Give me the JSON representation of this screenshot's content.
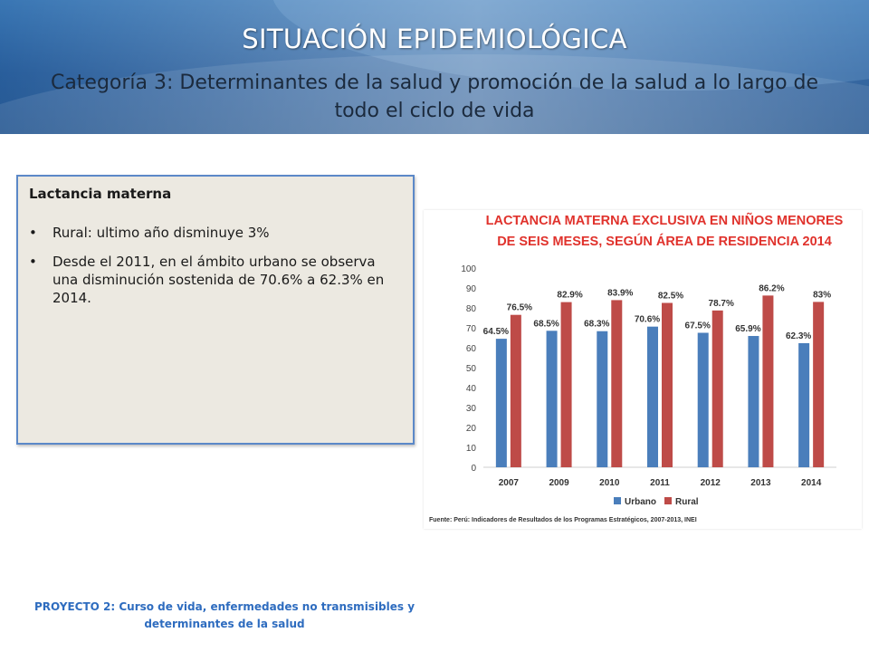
{
  "header": {
    "title": "SITUACIÓN EPIDEMIOLÓGICA",
    "subtitle": "Categoría 3: Determinantes de la salud y promoción de la salud a lo largo de todo el ciclo de vida"
  },
  "textbox": {
    "title": "Lactancia materna",
    "bullet_glyph": "•",
    "items": [
      "Rural: ultimo año disminuye 3%",
      "Desde el 2011, en el ámbito urbano se observa una disminución sostenida de 70.6% a 62.3% en 2014."
    ]
  },
  "chart_data": {
    "type": "bar",
    "title_lines": [
      "LACTANCIA MATERNA EXCLUSIVA EN NIÑOS MENORES",
      "DE SEIS MESES, SEGÚN ÁREA DE RESIDENCIA 2014"
    ],
    "categories": [
      "2007",
      "2009",
      "2010",
      "2011",
      "2012",
      "2013",
      "2014"
    ],
    "series": [
      {
        "name": "Urbano",
        "color": "#4a7ebb",
        "values": [
          64.5,
          68.5,
          68.3,
          70.6,
          67.5,
          65.9,
          62.3
        ],
        "labels": [
          "64.5%",
          "68.5%",
          "68.3%",
          "70.6%",
          "67.5%",
          "65.9%",
          "62.3%"
        ]
      },
      {
        "name": "Rural",
        "color": "#be4b48",
        "values": [
          76.5,
          82.9,
          83.9,
          82.5,
          78.7,
          86.2,
          83
        ],
        "labels": [
          "76.5%",
          "82.9%",
          "83.9%",
          "82.5%",
          "78.7%",
          "86.2%",
          "83%"
        ]
      }
    ],
    "yticks": [
      "0",
      "10",
      "20",
      "30",
      "40",
      "50",
      "60",
      "70",
      "80",
      "90",
      "100"
    ],
    "ylim": [
      0,
      100
    ],
    "grid": false,
    "legend_position": "bottom",
    "title_color": "#e0322c",
    "source": "Fuente: Perú: Indicadores de Resultados de los Programas Estratégicos, 2007-2013, INEI"
  },
  "footer": {
    "line1": "PROYECTO 2:  Curso de vida, enfermedades no transmisibles y",
    "line2": "determinantes de la salud"
  }
}
